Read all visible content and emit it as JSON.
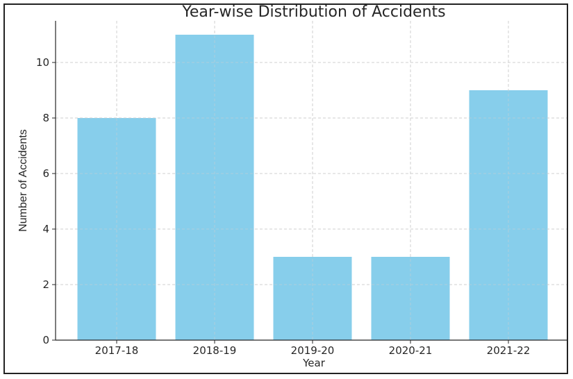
{
  "chart_data": {
    "type": "bar",
    "title": "Year-wise Distribution of Accidents",
    "xlabel": "Year",
    "ylabel": "Number of Accidents",
    "categories": [
      "2017-18",
      "2018-19",
      "2019-20",
      "2020-21",
      "2021-22"
    ],
    "values": [
      8,
      11,
      3,
      3,
      9
    ],
    "ylim": [
      0,
      11.5
    ],
    "yticks": [
      0,
      2,
      4,
      6,
      8,
      10
    ],
    "grid": true,
    "bar_color": "#87CEEB"
  }
}
